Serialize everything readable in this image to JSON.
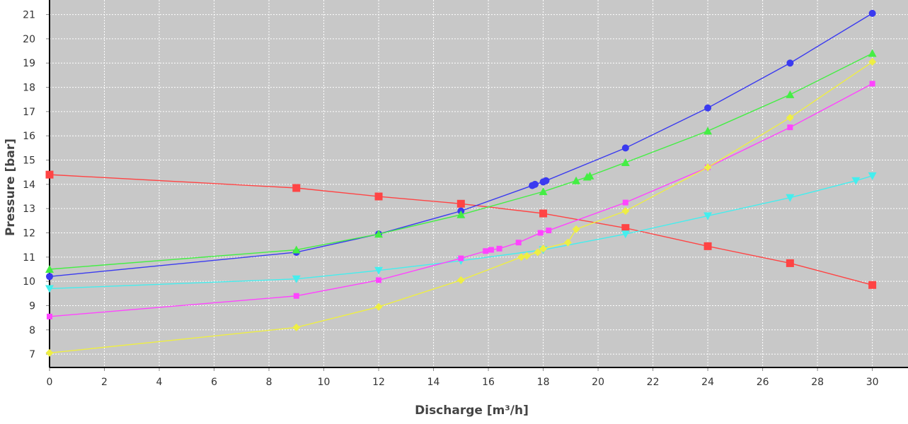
{
  "chart_data": {
    "type": "line",
    "title": "",
    "xlabel": "Discharge [m³/h]",
    "ylabel": "Pressure [bar]",
    "xlim": [
      0,
      31.3
    ],
    "ylim": [
      6.45,
      21.6
    ],
    "xticks": [
      "0",
      "2",
      "4",
      "6",
      "8",
      "10",
      "12",
      "14",
      "16",
      "18",
      "20",
      "22",
      "24",
      "26",
      "28",
      "30"
    ],
    "yticks": [
      "7",
      "8",
      "9",
      "10",
      "11",
      "12",
      "13",
      "14",
      "15",
      "16",
      "17",
      "18",
      "19",
      "20",
      "21"
    ],
    "grid": true,
    "plot_background": "#c8c8c8",
    "grid_color": "#ffffff",
    "series": [
      {
        "name": "red",
        "color": "#ff4444",
        "marker": "square",
        "x": [
          0,
          9,
          12,
          15,
          18,
          21,
          24,
          27,
          30
        ],
        "y": [
          14.4,
          13.85,
          13.5,
          13.2,
          12.8,
          12.2,
          11.45,
          10.75,
          9.85
        ]
      },
      {
        "name": "blue",
        "color": "#3a3af0",
        "marker": "circle",
        "x": [
          0,
          9,
          12,
          15,
          17.6,
          17.7,
          18,
          18.1,
          21,
          24,
          27,
          30
        ],
        "y": [
          10.2,
          11.2,
          11.95,
          12.9,
          13.95,
          14.0,
          14.1,
          14.15,
          15.5,
          17.15,
          19.0,
          21.05
        ]
      },
      {
        "name": "green",
        "color": "#44ee44",
        "marker": "triangle-up",
        "x": [
          0,
          9,
          12,
          15,
          18,
          19.2,
          19.6,
          19.7,
          21,
          24,
          27,
          30
        ],
        "y": [
          10.5,
          11.3,
          11.95,
          12.75,
          13.7,
          14.15,
          14.3,
          14.35,
          14.9,
          16.2,
          17.7,
          19.4
        ]
      },
      {
        "name": "cyan",
        "color": "#44eeee",
        "marker": "triangle-down",
        "x": [
          0,
          9,
          12,
          15,
          18,
          21,
          24,
          27,
          29.4,
          30
        ],
        "y": [
          9.7,
          10.1,
          10.45,
          10.85,
          11.3,
          11.95,
          12.7,
          13.45,
          14.15,
          14.35
        ]
      },
      {
        "name": "magenta",
        "color": "#ff44ff",
        "marker": "square",
        "x": [
          0,
          9,
          12,
          15,
          15.9,
          16.1,
          16.4,
          17.1,
          17.9,
          18.2,
          21,
          24,
          27,
          30
        ],
        "y": [
          8.55,
          9.4,
          10.05,
          10.95,
          11.25,
          11.3,
          11.35,
          11.6,
          12.0,
          12.1,
          13.25,
          14.7,
          16.35,
          18.15
        ]
      },
      {
        "name": "yellow",
        "color": "#eeee44",
        "marker": "diamond",
        "x": [
          0,
          9,
          12,
          15,
          17.2,
          17.4,
          17.8,
          18,
          18.9,
          19.2,
          21,
          24,
          27,
          30
        ],
        "y": [
          7.05,
          8.1,
          8.95,
          10.05,
          11.0,
          11.05,
          11.2,
          11.35,
          11.6,
          12.15,
          12.9,
          14.7,
          16.75,
          19.05
        ]
      }
    ]
  }
}
